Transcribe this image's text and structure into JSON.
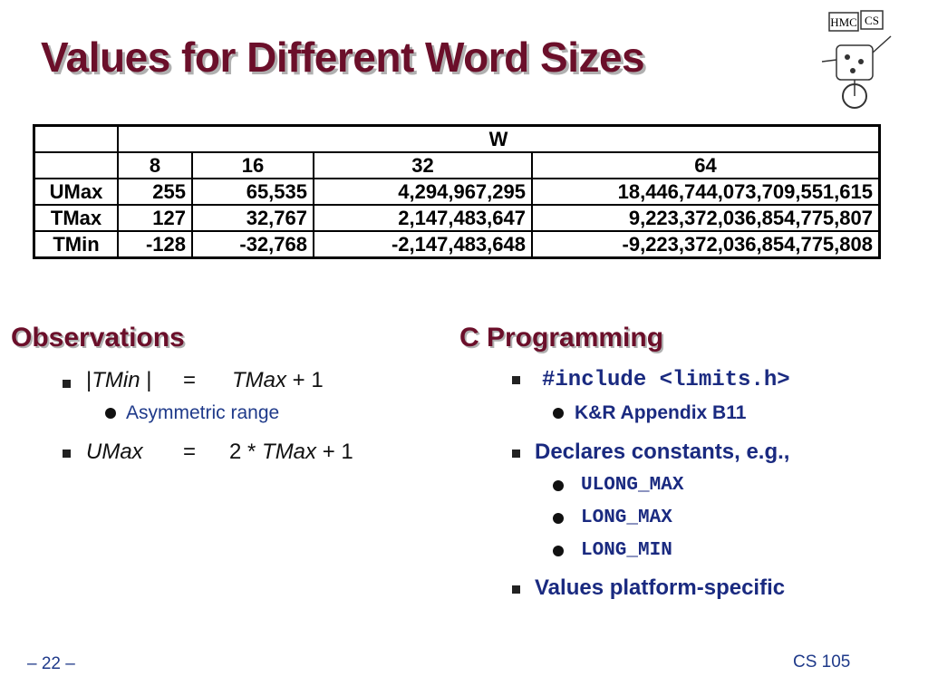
{
  "title": "Values for Different Word Sizes",
  "logo": {
    "left": "HMC",
    "right": "CS"
  },
  "table": {
    "group_header": "W",
    "columns": [
      "8",
      "16",
      "32",
      "64"
    ],
    "rows": [
      [
        "UMax",
        "255",
        "65,535",
        "4,294,967,295",
        "18,446,744,073,709,551,615"
      ],
      [
        "TMax",
        "127",
        "32,767",
        "2,147,483,647",
        "9,223,372,036,854,775,807"
      ],
      [
        "TMin",
        "-128",
        "-32,768",
        "-2,147,483,648",
        "-9,223,372,036,854,775,808"
      ]
    ]
  },
  "observations": {
    "heading": "Observations",
    "item1": {
      "bar_open": "|",
      "lhs": "TMin",
      "bar_close": " |",
      "eq": "=",
      "rhs": "TMax",
      "rest": " + 1",
      "sub": "Asymmetric range"
    },
    "item2": {
      "lhs": "UMax",
      "eq": "=",
      "pre": "2 * ",
      "rhs": "TMax",
      "rest": " + 1"
    }
  },
  "c_programming": {
    "heading": "C Programming",
    "item1": {
      "text": "#include <limits.h>",
      "sub": "K&R Appendix B11"
    },
    "item2": {
      "text": "Declares constants, e.g.,",
      "subs": [
        "ULONG_MAX",
        "LONG_MAX",
        "LONG_MIN"
      ]
    },
    "item3": {
      "text": "Values platform-specific"
    }
  },
  "footer": {
    "page": "– 22 –",
    "course": "CS 105"
  }
}
